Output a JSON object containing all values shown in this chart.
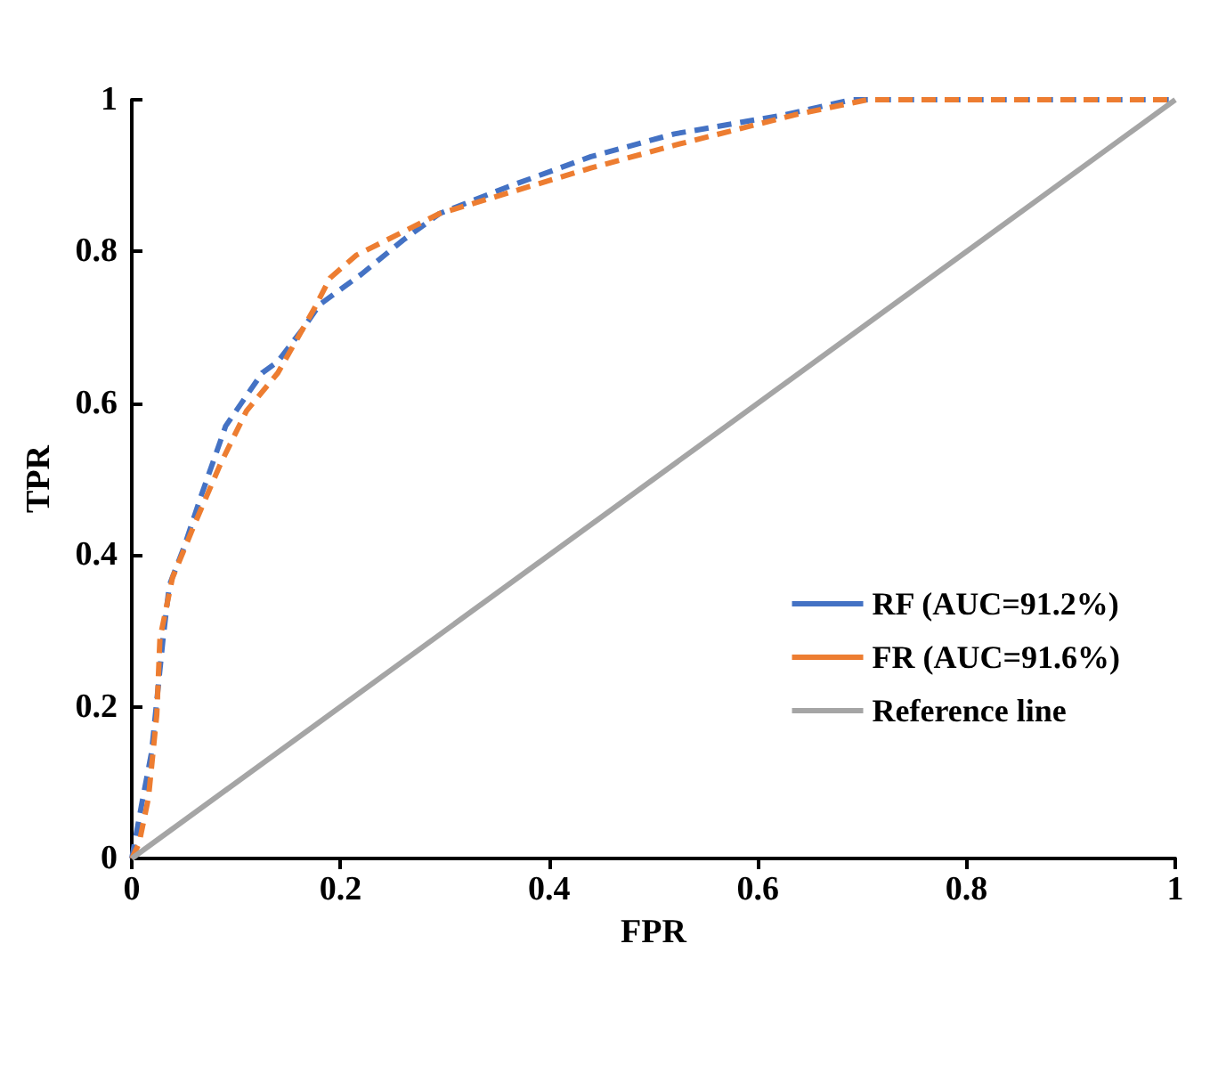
{
  "chart_data": {
    "type": "line",
    "xlabel": "FPR",
    "ylabel": "TPR",
    "xlim": [
      0,
      1
    ],
    "ylim": [
      0,
      1
    ],
    "xticks": [
      0,
      0.2,
      0.4,
      0.6,
      0.8,
      1
    ],
    "yticks": [
      0,
      0.2,
      0.4,
      0.6,
      0.8,
      1
    ],
    "grid": false,
    "legend": "bottom right",
    "marker": "none",
    "series": [
      {
        "name": "RF (AUC=91.2%)",
        "color": "#4472c4",
        "line_style": "dashed",
        "x": [
          0,
          0.01,
          0.019,
          0.03,
          0.036,
          0.05,
          0.067,
          0.09,
          0.125,
          0.14,
          0.165,
          0.18,
          0.2,
          0.22,
          0.26,
          0.295,
          0.36,
          0.44,
          0.52,
          0.625,
          0.69,
          1
        ],
        "values": [
          0,
          0.075,
          0.14,
          0.29,
          0.36,
          0.41,
          0.48,
          0.57,
          0.64,
          0.655,
          0.7,
          0.73,
          0.75,
          0.77,
          0.815,
          0.85,
          0.885,
          0.925,
          0.955,
          0.98,
          1,
          1
        ]
      },
      {
        "name": "FR (AUC=91.6%)",
        "color": "#ed7d31",
        "line_style": "dashed",
        "x": [
          0,
          0.007,
          0.016,
          0.024,
          0.027,
          0.039,
          0.06,
          0.085,
          0.11,
          0.14,
          0.175,
          0.19,
          0.215,
          0.295,
          0.44,
          0.52,
          0.635,
          0.705,
          1
        ],
        "values": [
          0,
          0.02,
          0.08,
          0.19,
          0.29,
          0.37,
          0.44,
          0.52,
          0.59,
          0.64,
          0.725,
          0.765,
          0.795,
          0.85,
          0.91,
          0.94,
          0.98,
          1,
          1
        ]
      },
      {
        "name": "Reference line",
        "color": "#a5a5a5",
        "line_style": "solid",
        "x": [
          0,
          1
        ],
        "values": [
          0,
          1
        ]
      }
    ]
  }
}
